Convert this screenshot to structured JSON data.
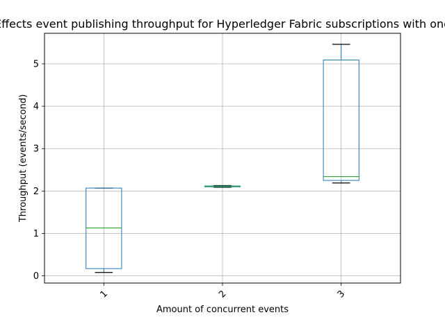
{
  "chart_data": {
    "type": "box",
    "title": "Effects event publishing throughput for Hyperledger Fabric subscriptions with one",
    "xlabel": "Amount of concurrent events",
    "ylabel": "Throughput (events/second)",
    "categories": [
      "1",
      "2",
      "3"
    ],
    "ylim": [
      -0.17,
      5.72
    ],
    "yticks": [
      0,
      1,
      2,
      3,
      4,
      5
    ],
    "grid": true,
    "xtick_rotation": 45,
    "boxes": [
      {
        "category": "1",
        "whisker_low": 0.08,
        "q1": 0.17,
        "median": 1.13,
        "q3": 2.07,
        "whisker_high": 2.07
      },
      {
        "category": "2",
        "whisker_low": 2.09,
        "q1": 2.1,
        "median": 2.11,
        "q3": 2.12,
        "whisker_high": 2.13
      },
      {
        "category": "3",
        "whisker_low": 2.19,
        "q1": 2.25,
        "median": 2.34,
        "q3": 5.09,
        "whisker_high": 5.46
      }
    ],
    "colors": {
      "box": "#1f77b4",
      "median": "#2ca02c",
      "whisker_cap": "#000000",
      "grid": "#b0b0b0"
    }
  }
}
